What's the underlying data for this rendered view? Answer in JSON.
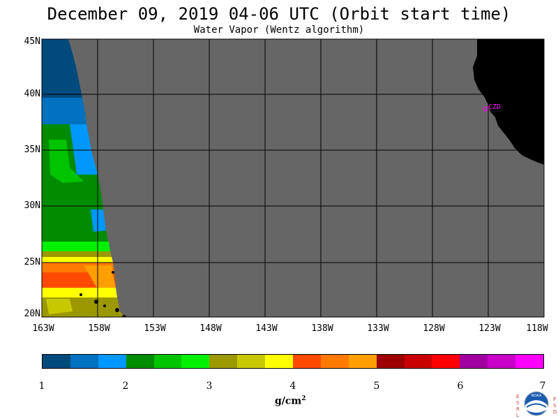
{
  "title": "December 09, 2019  04-06 UTC  (Orbit start time)",
  "subtitle": "Water Vapor (Wentz algorithm)",
  "map": {
    "lat_labels": [
      "45N",
      "40N",
      "35N",
      "30N",
      "25N",
      "20N"
    ],
    "lon_labels": [
      "163W",
      "158W",
      "153W",
      "148W",
      "143W",
      "138W",
      "133W",
      "128W",
      "123W",
      "118W"
    ],
    "station_label": "CZD",
    "colors": {
      "no_data": "#666666",
      "land": "#000000",
      "grid": "#000000",
      "station": "#ff00ff"
    }
  },
  "colorbar": {
    "colors": [
      "#004a7c",
      "#0072c0",
      "#0098ff",
      "#008c00",
      "#00c400",
      "#00f000",
      "#9c9800",
      "#c8c800",
      "#ffff00",
      "#ff4a00",
      "#ff7a00",
      "#ff9e00",
      "#9c0000",
      "#c80000",
      "#ff0000",
      "#a000a0",
      "#c800c8",
      "#ff00ff"
    ],
    "ticks": [
      "1",
      "2",
      "3",
      "4",
      "5",
      "6",
      "7"
    ],
    "units_base": "g/cm",
    "units_exp": "2"
  },
  "logo": {
    "left_letters": "ESRL",
    "right_letters": "PSD",
    "center_text": "NOAA"
  }
}
